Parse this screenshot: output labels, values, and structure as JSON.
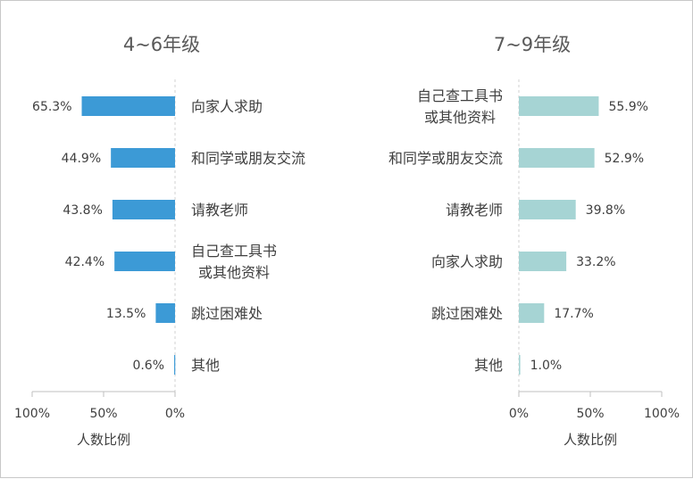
{
  "chart_data": [
    {
      "type": "bar",
      "orientation": "horizontal",
      "direction": "right-to-left",
      "title": "4~6年级",
      "xlabel": "人数比例",
      "xlim": [
        0,
        100
      ],
      "ticks": [
        "100%",
        "50%",
        "0%"
      ],
      "color": "#3c9ad6",
      "categories": [
        [
          "向家人求助"
        ],
        [
          "和同学或朋友交流"
        ],
        [
          "请教老师"
        ],
        [
          "自己查工具书",
          "或其他资料"
        ],
        [
          "跳过困难处"
        ],
        [
          "其他"
        ]
      ],
      "values": [
        65.3,
        44.9,
        43.8,
        42.4,
        13.5,
        0.6
      ],
      "labels": [
        "65.3%",
        "44.9%",
        "43.8%",
        "42.4%",
        "13.5%",
        "0.6%"
      ]
    },
    {
      "type": "bar",
      "orientation": "horizontal",
      "direction": "left-to-right",
      "title": "7~9年级",
      "xlabel": "人数比例",
      "xlim": [
        0,
        100
      ],
      "ticks": [
        "0%",
        "50%",
        "100%"
      ],
      "color": "#a6d4d4",
      "categories": [
        [
          "自己查工具书",
          "或其他资料"
        ],
        [
          "和同学或朋友交流"
        ],
        [
          "请教老师"
        ],
        [
          "向家人求助"
        ],
        [
          "跳过困难处"
        ],
        [
          "其他"
        ]
      ],
      "values": [
        55.9,
        52.9,
        39.8,
        33.2,
        17.7,
        1.0
      ],
      "labels": [
        "55.9%",
        "52.9%",
        "39.8%",
        "33.2%",
        "17.7%",
        "1.0%"
      ]
    }
  ]
}
